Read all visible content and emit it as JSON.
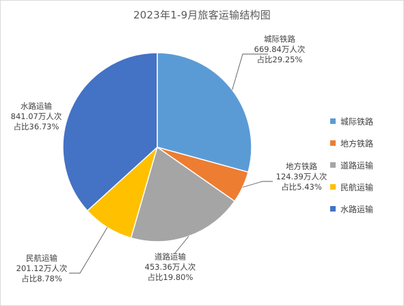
{
  "chart_data": {
    "type": "pie",
    "title": "2023年1-9月旅客运输结构图",
    "unit": "万人次",
    "start_angle_deg": 0,
    "direction": "clockwise",
    "categories": [
      "城际铁路",
      "地方铁路",
      "道路运输",
      "民航运输",
      "水路运输"
    ],
    "values": [
      669.84,
      124.39,
      453.36,
      201.12,
      841.07
    ],
    "percentages": [
      29.25,
      5.43,
      19.8,
      8.78,
      36.73
    ],
    "colors": [
      "#5B9BD5",
      "#ED7D31",
      "#A5A5A5",
      "#FFC000",
      "#4472C4"
    ],
    "legend_position": "right",
    "data_labels": [
      {
        "name": "城际铁路",
        "value_text": "669.84万人次",
        "pct_text": "占比29.25%"
      },
      {
        "name": "地方铁路",
        "value_text": "124.39万人次",
        "pct_text": "占比5.43%"
      },
      {
        "name": "道路运输",
        "value_text": "453.36万人次",
        "pct_text": "占比19.80%"
      },
      {
        "name": "民航运输",
        "value_text": "201.12万人次",
        "pct_text": "占比8.78%"
      },
      {
        "name": "水路运输",
        "value_text": "841.07万人次",
        "pct_text": "占比36.73%"
      }
    ]
  },
  "legend": {
    "items": [
      {
        "label": "城际铁路",
        "color": "#5B9BD5"
      },
      {
        "label": "地方铁路",
        "color": "#ED7D31"
      },
      {
        "label": "道路运输",
        "color": "#A5A5A5"
      },
      {
        "label": "民航运输",
        "color": "#FFC000"
      },
      {
        "label": "水路运输",
        "color": "#4472C4"
      }
    ]
  }
}
